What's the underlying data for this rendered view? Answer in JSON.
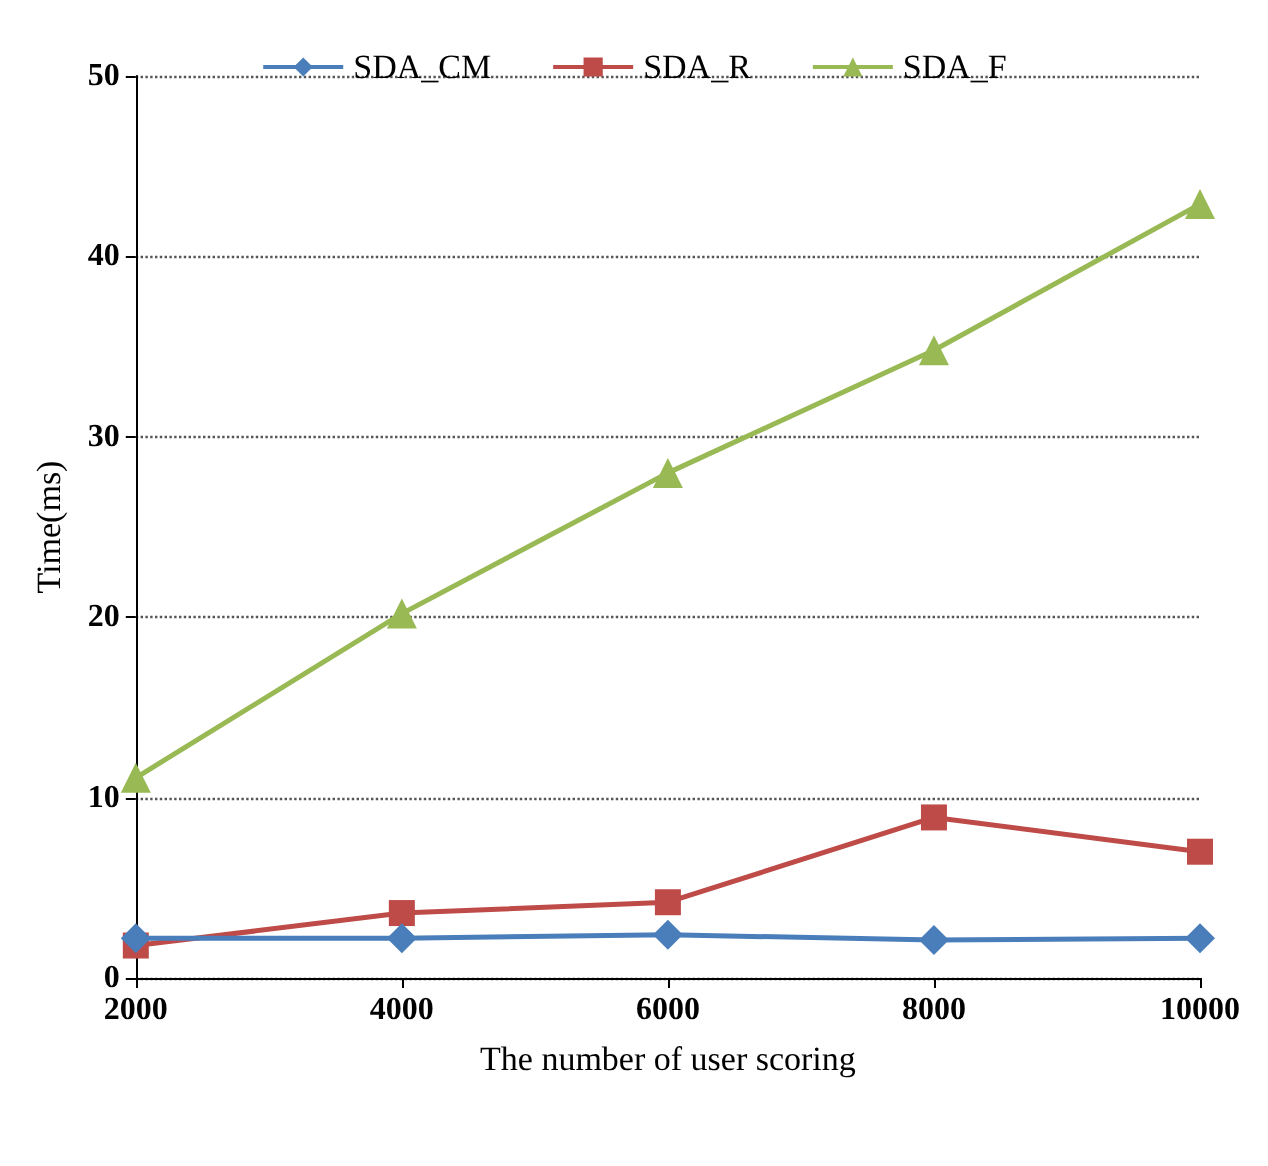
{
  "chart_data": {
    "type": "line",
    "xlabel": "The number of user scoring",
    "ylabel": "Time(ms)",
    "x": [
      2000,
      4000,
      6000,
      8000,
      10000
    ],
    "series": [
      {
        "name": "SDA_CM",
        "color": "#4a7ebb",
        "marker": "diamond",
        "values": [
          2.2,
          2.2,
          2.4,
          2.1,
          2.2
        ]
      },
      {
        "name": "SDA_R",
        "color": "#be4b48",
        "marker": "square",
        "values": [
          1.8,
          3.6,
          4.2,
          8.9,
          7.0
        ]
      },
      {
        "name": "SDA_F",
        "color": "#98b954",
        "marker": "triangle",
        "values": [
          11.1,
          20.2,
          28.0,
          34.8,
          42.9
        ]
      }
    ],
    "xlim": [
      2000,
      10000
    ],
    "xticks": [
      2000,
      4000,
      6000,
      8000,
      10000
    ],
    "ylim": [
      0,
      50
    ],
    "yticks": [
      0,
      10,
      20,
      30,
      40,
      50
    ],
    "grid": "y",
    "legend": "top",
    "line_style": "solid"
  }
}
